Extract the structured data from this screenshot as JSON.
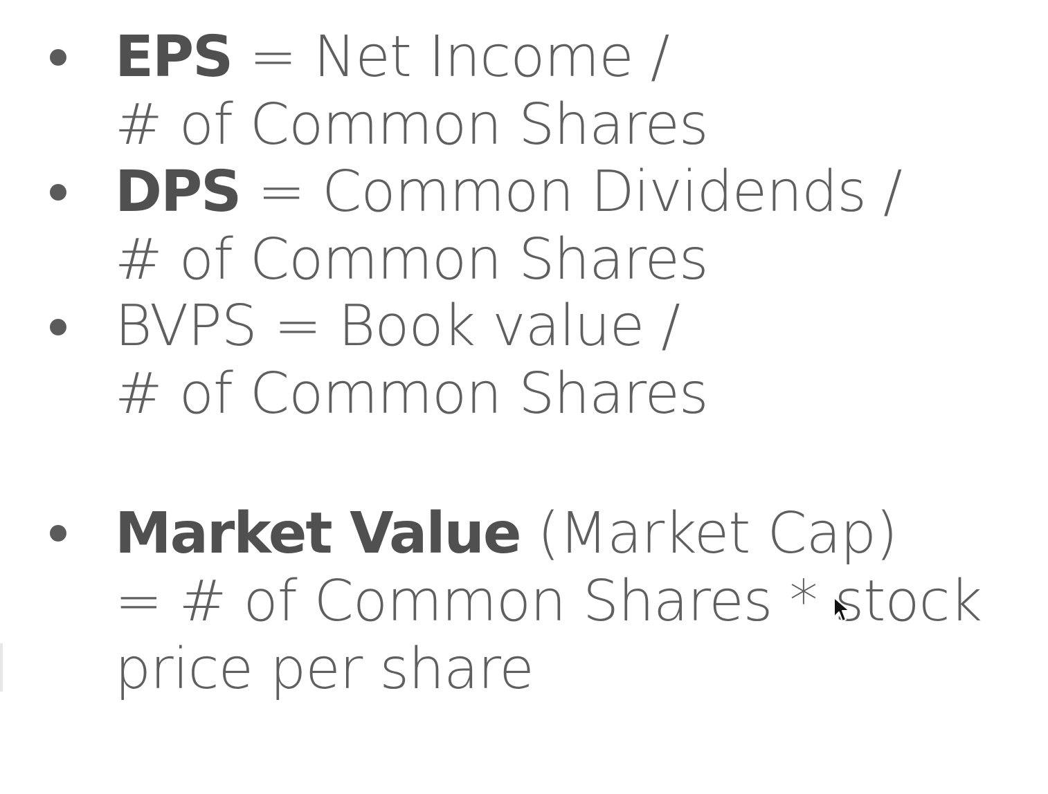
{
  "items": [
    {
      "term": "EPS",
      "rest": " = Net Income /",
      "line2": "# of Common Shares"
    },
    {
      "term": "DPS",
      "rest": " = Common Dividends /",
      "line2": "# of Common Shares"
    },
    {
      "line1": "BVPS = Book value /",
      "line2": "# of Common Shares"
    },
    {
      "term": "Market Value",
      "rest": " (Market Cap)",
      "line2": "=  # of Common Shares * stock",
      "line3": "price per share"
    }
  ],
  "icons": {
    "bullet": "bullet-dot-icon",
    "cursor": "mouse-pointer-icon"
  },
  "colors": {
    "text": "#5f5f5f",
    "bold_text": "#505050",
    "background": "#ffffff"
  }
}
